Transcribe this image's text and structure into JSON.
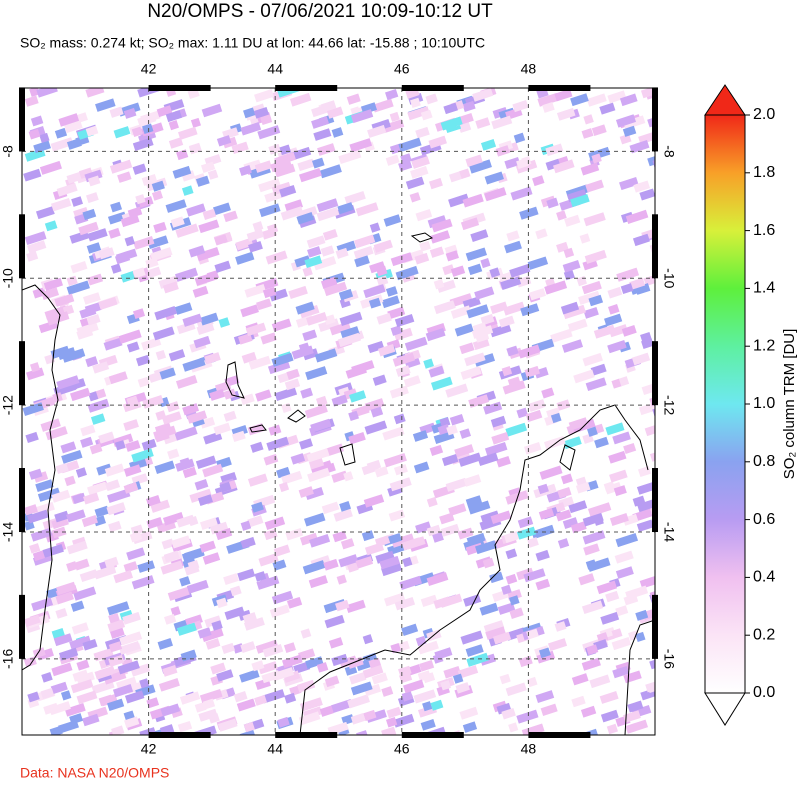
{
  "map": {
    "title": "N20/OMPS - 07/06/2021 10:09-10:12 UT",
    "subtitle": "SO₂ mass: 0.274 kt; SO₂ max: 1.11 DU at lon: 44.66 lat: -15.88 ; 10:10UTC",
    "lonlim": [
      40,
      50
    ],
    "latlim": [
      -17.2,
      -7
    ],
    "lonticks": [
      42,
      44,
      46,
      48
    ],
    "latticks": [
      -8,
      -10,
      -12,
      -14,
      -16
    ],
    "colorbar": {
      "label": "SO₂ column TRM [DU]",
      "lim": [
        0,
        2
      ],
      "ticks": [
        {
          "value": 0,
          "label": "0.0"
        },
        {
          "value": 0.2,
          "label": "0.2"
        },
        {
          "value": 0.4,
          "label": "0.4"
        },
        {
          "value": 0.6,
          "label": "0.6"
        },
        {
          "value": 0.8,
          "label": "0.8"
        },
        {
          "value": 1,
          "label": "1.0"
        },
        {
          "value": 1.2,
          "label": "1.2"
        },
        {
          "value": 1.4,
          "label": "1.4"
        },
        {
          "value": 1.6,
          "label": "1.6"
        },
        {
          "value": 1.8,
          "label": "1.8"
        },
        {
          "value": 2,
          "label": "2.0"
        }
      ]
    },
    "credit": "Data: NASA N20/OMPS"
  }
}
